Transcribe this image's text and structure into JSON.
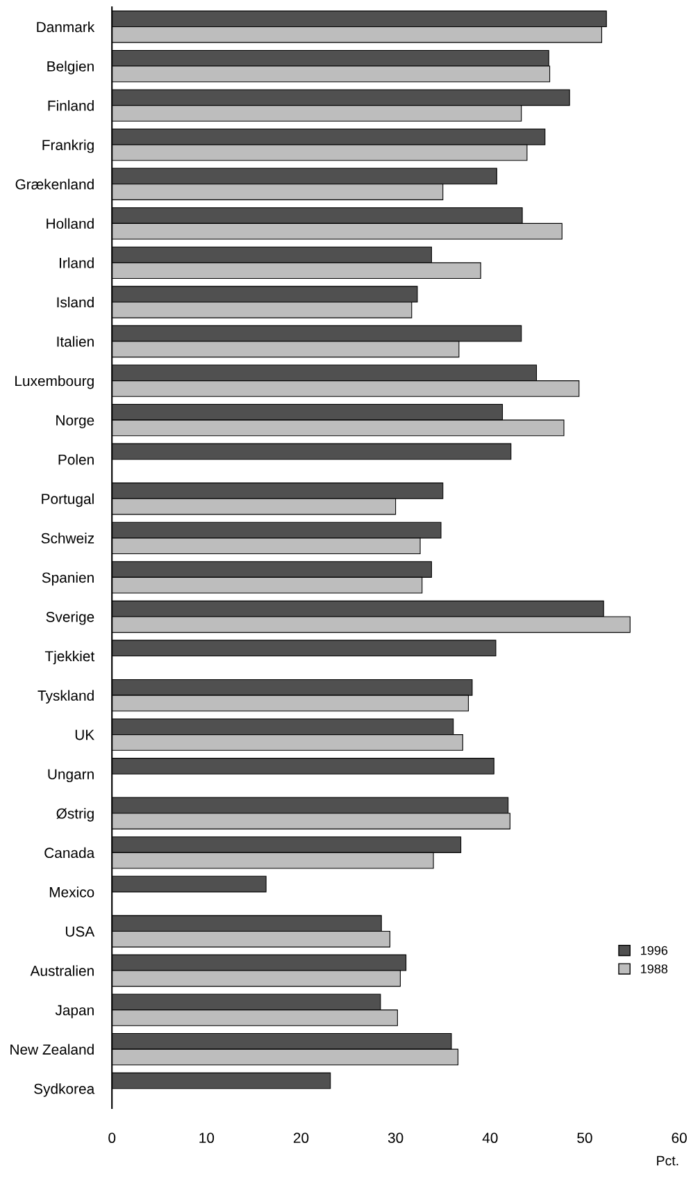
{
  "chart_data": {
    "type": "bar",
    "orientation": "horizontal",
    "xlabel": "Pct.",
    "categories": [
      "Danmark",
      "Belgien",
      "Finland",
      "Frankrig",
      "Grækenland",
      "Holland",
      "Irland",
      "Island",
      "Italien",
      "Luxembourg",
      "Norge",
      "Polen",
      "Portugal",
      "Schweiz",
      "Spanien",
      "Sverige",
      "Tjekkiet",
      "Tyskland",
      "UK",
      "Ungarn",
      "Østrig",
      "Canada",
      "Mexico",
      "USA",
      "Australien",
      "Japan",
      "New Zealand",
      "Sydkorea"
    ],
    "series": [
      {
        "name": "1996",
        "color": "#505050",
        "values": [
          52.3,
          46.2,
          48.4,
          45.8,
          40.7,
          43.4,
          33.8,
          32.3,
          43.3,
          44.9,
          41.3,
          42.2,
          35.0,
          34.8,
          33.8,
          52.0,
          40.6,
          38.1,
          36.1,
          40.4,
          41.9,
          36.9,
          16.3,
          28.5,
          31.1,
          28.4,
          35.9,
          23.1
        ]
      },
      {
        "name": "1988",
        "color": "#bdbdbd",
        "values": [
          51.8,
          46.3,
          43.3,
          43.9,
          35.0,
          47.6,
          39.0,
          31.7,
          36.7,
          49.4,
          47.8,
          null,
          30.0,
          32.6,
          32.8,
          54.8,
          null,
          37.7,
          37.1,
          null,
          42.1,
          34.0,
          null,
          29.4,
          30.5,
          30.2,
          36.6,
          null
        ]
      }
    ],
    "xlim": [
      0,
      60
    ],
    "xticks": [
      0,
      10,
      20,
      30,
      40,
      50,
      60
    ],
    "grid": false,
    "legend": "bottom right"
  }
}
